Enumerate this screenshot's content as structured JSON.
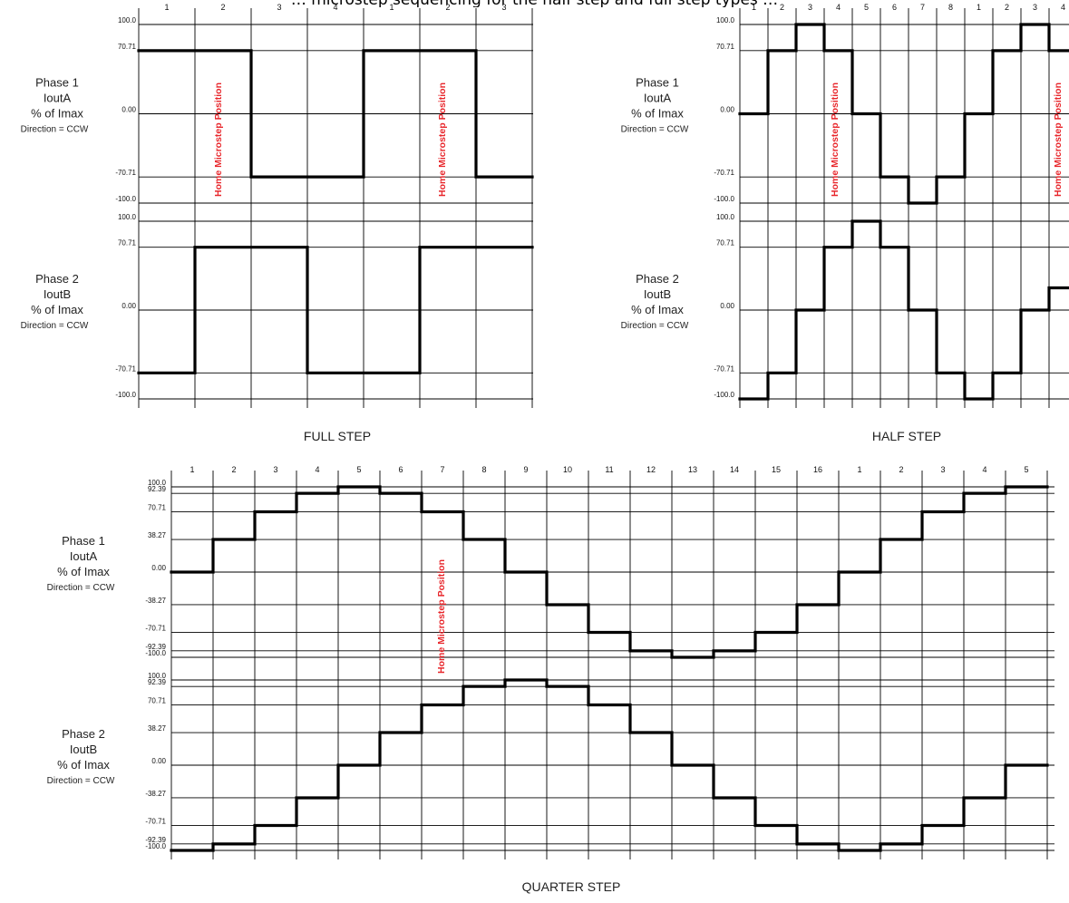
{
  "top_caption": "… microstep sequencing for the half step and full step types …",
  "direction_label": "Direction = CCW",
  "home_label": "Home Microstep Position",
  "colors": {
    "wave": "#000000",
    "grid": "#000000",
    "home": "#e8262b"
  },
  "phase_labels": [
    [
      "Phase 1",
      "IoutA",
      "% of Imax"
    ],
    [
      "Phase 2",
      "IoutB",
      "% of Imax"
    ]
  ],
  "panels": [
    {
      "title": "FULL STEP",
      "columns": [
        "1",
        "2",
        "3",
        "4",
        "1",
        "2",
        "3"
      ],
      "ticks": [
        "100.0",
        "70.71",
        "0.00",
        "-70.71",
        "-100.0"
      ],
      "phase1": [
        70.71,
        70.71,
        -70.71,
        -70.71,
        70.71,
        70.71,
        -70.71
      ],
      "phase2": [
        -70.71,
        70.71,
        70.71,
        -70.71,
        -70.71,
        70.71,
        70.71
      ]
    },
    {
      "title": "HALF STEP",
      "columns": [
        "1",
        "2",
        "3",
        "4",
        "5",
        "6",
        "7",
        "8",
        "1",
        "2",
        "3",
        "4"
      ],
      "ticks": [
        "100.0",
        "70.71",
        "0.00",
        "-70.71",
        "-100.0"
      ],
      "phase1": [
        0,
        70.71,
        100,
        70.71,
        0,
        -70.71,
        -100,
        -70.71,
        0,
        70.71,
        100,
        70.71
      ],
      "phase2": [
        -100,
        -70.71,
        0,
        70.71,
        100,
        70.71,
        0,
        -70.71,
        -100,
        -70.71,
        0,
        25
      ]
    },
    {
      "title": "QUARTER STEP",
      "columns": [
        "1",
        "2",
        "3",
        "4",
        "5",
        "6",
        "7",
        "8",
        "9",
        "10",
        "11",
        "12",
        "13",
        "14",
        "15",
        "16",
        "1",
        "2",
        "3",
        "4",
        "5"
      ],
      "ticks": [
        "100.0",
        "92.39",
        "70.71",
        "38.27",
        "0.00",
        "-38.27",
        "-70.71",
        "-92.39",
        "-100.0"
      ],
      "phase1": [
        0,
        38.27,
        70.71,
        92.39,
        100,
        92.39,
        70.71,
        38.27,
        0,
        -38.27,
        -70.71,
        -92.39,
        -100,
        -92.39,
        -70.71,
        -38.27,
        0,
        38.27,
        70.71,
        92.39,
        100
      ],
      "phase2": [
        -100,
        -92.39,
        -70.71,
        -38.27,
        0,
        38.27,
        70.71,
        92.39,
        100,
        92.39,
        70.71,
        38.27,
        0,
        -38.27,
        -70.71,
        -92.39,
        -100,
        -92.39,
        -70.71,
        -38.27,
        0
      ]
    }
  ]
}
